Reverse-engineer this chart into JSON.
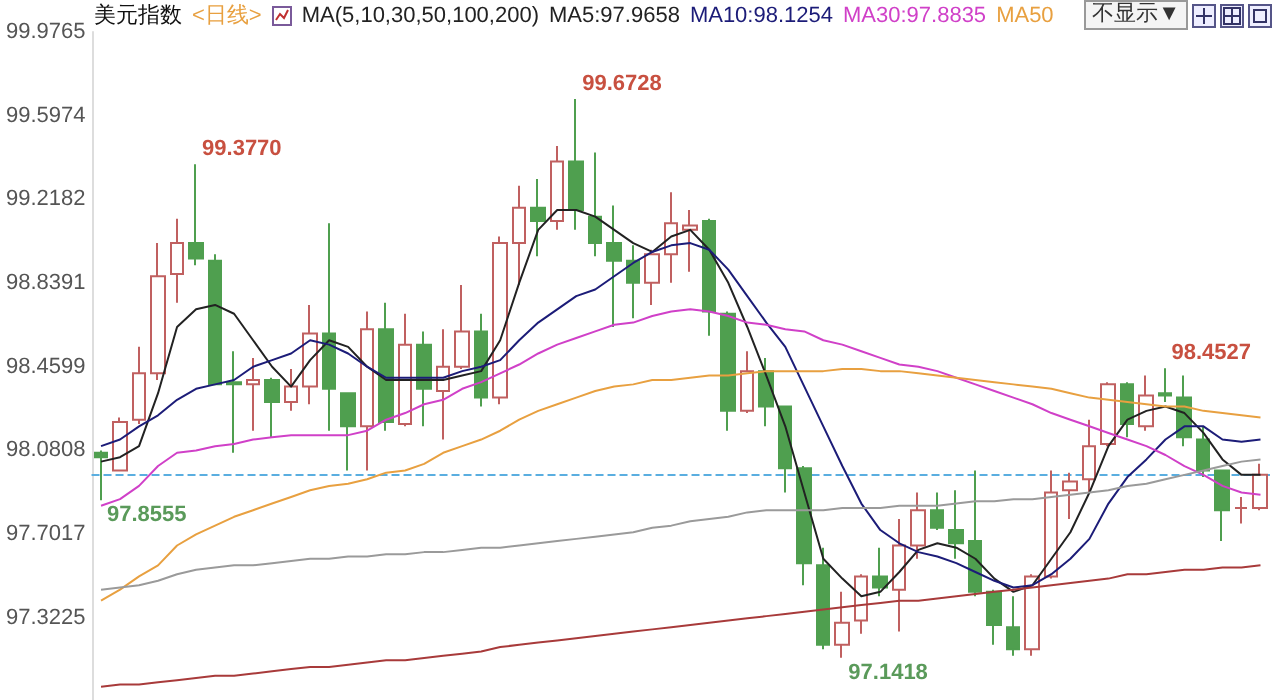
{
  "chart_data": {
    "type": "candlestick",
    "title": "美元指数",
    "subtitle": "<日线>",
    "annotations": [
      "MA(5,10,30,50,100,200)",
      "不显示▼",
      "99.3770",
      "99.6728",
      "98.4527",
      "97.8555",
      "97.1418"
    ],
    "categories": [
      null,
      null,
      null,
      null,
      null,
      null,
      null,
      null,
      null,
      null,
      null,
      null,
      null,
      null,
      null,
      null,
      null,
      null,
      null,
      null,
      null,
      null,
      null,
      null,
      null,
      null,
      null,
      null,
      null,
      null,
      null,
      null,
      null,
      null,
      null,
      null,
      null,
      null,
      null,
      null,
      null,
      null,
      null,
      null,
      null,
      null,
      null,
      null,
      null,
      null,
      null,
      null,
      null,
      null,
      null,
      null,
      null,
      null,
      null,
      null,
      null,
      null
    ],
    "ylim": [
      96.95,
      99.9765
    ],
    "yticks": [
      97.3225,
      97.7017,
      98.0808,
      98.4599,
      98.8391,
      99.2182,
      99.5974,
      99.9765
    ],
    "tick_labels": "y",
    "legend": "top",
    "ref_lines": [
      {
        "axis": "y",
        "value": 97.97,
        "color": "#5aaee0",
        "line_style": "dashed"
      }
    ],
    "series": [
      {
        "type": "candlestick",
        "ohlc": [
          [
            98.07,
            98.08,
            97.8555,
            98.05
          ],
          [
            97.99,
            98.23,
            97.99,
            98.21
          ],
          [
            98.22,
            98.55,
            98.2,
            98.43
          ],
          [
            98.43,
            99.02,
            98.4,
            98.87
          ],
          [
            98.88,
            99.13,
            98.75,
            99.02
          ],
          [
            99.02,
            99.377,
            98.92,
            98.95
          ],
          [
            98.94,
            98.97,
            98.38,
            98.38
          ],
          [
            98.39,
            98.53,
            98.07,
            98.38
          ],
          [
            98.38,
            98.5,
            98.17,
            98.4
          ],
          [
            98.4,
            98.41,
            98.14,
            98.3
          ],
          [
            98.3,
            98.45,
            98.26,
            98.37
          ],
          [
            98.37,
            98.74,
            98.29,
            98.61
          ],
          [
            98.61,
            99.11,
            98.17,
            98.36
          ],
          [
            98.34,
            98.34,
            97.99,
            98.19
          ],
          [
            98.19,
            98.71,
            97.99,
            98.63
          ],
          [
            98.63,
            98.75,
            98.17,
            98.21
          ],
          [
            98.2,
            98.7,
            98.19,
            98.56
          ],
          [
            98.56,
            98.62,
            98.19,
            98.36
          ],
          [
            98.35,
            98.63,
            98.13,
            98.46
          ],
          [
            98.46,
            98.83,
            98.45,
            98.62
          ],
          [
            98.62,
            98.7,
            98.28,
            98.32
          ],
          [
            98.32,
            99.05,
            98.29,
            99.02
          ],
          [
            99.02,
            99.28,
            98.83,
            99.18
          ],
          [
            99.18,
            99.31,
            98.96,
            99.12
          ],
          [
            99.12,
            99.46,
            99.08,
            99.39
          ],
          [
            99.39,
            99.6728,
            99.08,
            99.17
          ],
          [
            99.14,
            99.43,
            98.96,
            99.02
          ],
          [
            99.02,
            99.19,
            98.64,
            98.94
          ],
          [
            98.94,
            99.01,
            98.68,
            98.84
          ],
          [
            98.84,
            98.99,
            98.74,
            98.97
          ],
          [
            98.97,
            99.25,
            98.84,
            99.11
          ],
          [
            99.08,
            99.17,
            98.89,
            99.1
          ],
          [
            99.12,
            99.13,
            98.6,
            98.71
          ],
          [
            98.7,
            98.71,
            98.17,
            98.26
          ],
          [
            98.26,
            98.53,
            98.25,
            98.44
          ],
          [
            98.44,
            98.5,
            98.19,
            98.28
          ],
          [
            98.28,
            98.28,
            97.89,
            98.0
          ],
          [
            98.0,
            98.01,
            97.47,
            97.57
          ],
          [
            97.56,
            97.64,
            97.18,
            97.2
          ],
          [
            97.2,
            97.44,
            97.1418,
            97.3
          ],
          [
            97.31,
            97.52,
            97.25,
            97.51
          ],
          [
            97.51,
            97.64,
            97.42,
            97.46
          ],
          [
            97.45,
            97.77,
            97.26,
            97.65
          ],
          [
            97.65,
            97.89,
            97.59,
            97.81
          ],
          [
            97.81,
            97.89,
            97.72,
            97.73
          ],
          [
            97.72,
            97.9,
            97.59,
            97.66
          ],
          [
            97.67,
            97.99,
            97.42,
            97.44
          ],
          [
            97.44,
            97.45,
            97.2,
            97.29
          ],
          [
            97.28,
            97.42,
            97.15,
            97.18
          ],
          [
            97.18,
            97.52,
            97.15,
            97.51
          ],
          [
            97.51,
            97.99,
            97.5,
            97.89
          ],
          [
            97.9,
            97.98,
            97.77,
            97.94
          ],
          [
            97.95,
            98.22,
            97.89,
            98.1
          ],
          [
            98.11,
            98.39,
            98.1,
            98.38
          ],
          [
            98.38,
            98.39,
            98.14,
            98.2
          ],
          [
            98.19,
            98.42,
            98.17,
            98.33
          ],
          [
            98.34,
            98.4527,
            98.3,
            98.33
          ],
          [
            98.32,
            98.42,
            98.1,
            98.14
          ],
          [
            98.13,
            98.19,
            97.96,
            97.99
          ],
          [
            97.99,
            97.99,
            97.67,
            97.81
          ],
          [
            97.82,
            97.87,
            97.75,
            97.82
          ],
          [
            97.82,
            98.02,
            97.81,
            97.97
          ]
        ],
        "colors": [
          "#4f9f4f",
          "#c06060",
          "#c06060",
          "#c06060",
          "#c06060",
          "#4f9f4f",
          "#4f9f4f",
          "#4f9f4f",
          "#c06060",
          "#4f9f4f",
          "#c06060",
          "#c06060",
          "#4f9f4f",
          "#4f9f4f",
          "#c06060",
          "#4f9f4f",
          "#c06060",
          "#4f9f4f",
          "#c06060",
          "#c06060",
          "#4f9f4f",
          "#c06060",
          "#c06060",
          "#4f9f4f",
          "#c06060",
          "#4f9f4f",
          "#4f9f4f",
          "#4f9f4f",
          "#4f9f4f",
          "#c06060",
          "#c06060",
          "#c06060",
          "#4f9f4f",
          "#4f9f4f",
          "#c06060",
          "#4f9f4f",
          "#4f9f4f",
          "#4f9f4f",
          "#4f9f4f",
          "#c06060",
          "#c06060",
          "#4f9f4f",
          "#c06060",
          "#c06060",
          "#4f9f4f",
          "#4f9f4f",
          "#4f9f4f",
          "#4f9f4f",
          "#4f9f4f",
          "#c06060",
          "#c06060",
          "#c06060",
          "#c06060",
          "#c06060",
          "#4f9f4f",
          "#c06060",
          "#4f9f4f",
          "#4f9f4f",
          "#4f9f4f",
          "#4f9f4f",
          "#c06060",
          "#c06060"
        ]
      },
      {
        "type": "line",
        "name": "MA5:97.9658",
        "color": "#222222",
        "values": [
          98.03,
          98.05,
          98.1,
          98.34,
          98.64,
          98.72,
          98.74,
          98.7,
          98.58,
          98.46,
          98.37,
          98.49,
          98.58,
          98.55,
          98.46,
          98.4,
          98.4,
          98.4,
          98.4,
          98.42,
          98.44,
          98.58,
          98.84,
          99.08,
          99.17,
          99.17,
          99.14,
          99.08,
          99.02,
          98.98,
          99.05,
          99.08,
          98.99,
          98.84,
          98.64,
          98.42,
          98.19,
          97.89,
          97.59,
          97.5,
          97.42,
          97.44,
          97.53,
          97.63,
          97.66,
          97.64,
          97.59,
          97.5,
          97.44,
          97.47,
          97.59,
          97.71,
          97.89,
          98.1,
          98.22,
          98.26,
          98.28,
          98.25,
          98.16,
          98.04,
          97.97,
          97.97
        ]
      },
      {
        "type": "line",
        "name": "MA10:98.1254",
        "color": "#1c1c78",
        "values": [
          98.1,
          98.13,
          98.19,
          98.24,
          98.31,
          98.36,
          98.38,
          98.4,
          98.46,
          98.49,
          98.52,
          98.58,
          98.56,
          98.52,
          98.46,
          98.41,
          98.41,
          98.41,
          98.41,
          98.44,
          98.46,
          98.49,
          98.58,
          98.66,
          98.72,
          98.78,
          98.81,
          98.87,
          98.93,
          98.98,
          99.01,
          99.02,
          98.99,
          98.9,
          98.78,
          98.66,
          98.55,
          98.37,
          98.19,
          98.01,
          97.84,
          97.72,
          97.66,
          97.62,
          97.6,
          97.57,
          97.53,
          97.49,
          97.46,
          97.47,
          97.52,
          97.59,
          97.68,
          97.84,
          97.96,
          98.04,
          98.13,
          98.19,
          98.19,
          98.13,
          98.12,
          98.13
        ]
      },
      {
        "type": "line",
        "name": "MA30:97.8835",
        "color": "#d040c8",
        "values": [
          97.83,
          97.86,
          97.92,
          98.01,
          98.07,
          98.08,
          98.1,
          98.11,
          98.13,
          98.14,
          98.15,
          98.15,
          98.15,
          98.15,
          98.17,
          98.22,
          98.25,
          98.29,
          98.31,
          98.36,
          98.39,
          98.43,
          98.47,
          98.52,
          98.56,
          98.59,
          98.62,
          98.65,
          98.66,
          98.69,
          98.71,
          98.72,
          98.71,
          98.69,
          98.66,
          98.65,
          98.63,
          98.62,
          98.58,
          98.56,
          98.53,
          98.5,
          98.47,
          98.46,
          98.44,
          98.41,
          98.38,
          98.35,
          98.32,
          98.29,
          98.25,
          98.22,
          98.19,
          98.16,
          98.13,
          98.1,
          98.06,
          98.01,
          97.97,
          97.92,
          97.89,
          97.88
        ]
      },
      {
        "type": "line",
        "name": "MA50",
        "color": "#e8a040",
        "values": [
          97.4,
          97.45,
          97.51,
          97.56,
          97.65,
          97.7,
          97.74,
          97.78,
          97.81,
          97.84,
          97.87,
          97.9,
          97.92,
          97.93,
          97.95,
          97.98,
          97.99,
          98.02,
          98.07,
          98.1,
          98.13,
          98.17,
          98.22,
          98.26,
          98.29,
          98.32,
          98.35,
          98.37,
          98.38,
          98.4,
          98.4,
          98.41,
          98.42,
          98.42,
          98.43,
          98.44,
          98.44,
          98.44,
          98.44,
          98.45,
          98.45,
          98.44,
          98.44,
          98.43,
          98.42,
          98.41,
          98.4,
          98.39,
          98.38,
          98.37,
          98.36,
          98.34,
          98.32,
          98.31,
          98.3,
          98.29,
          98.28,
          98.28,
          98.26,
          98.25,
          98.24,
          98.23
        ]
      },
      {
        "type": "line",
        "color": "#9a9a9a",
        "values": [
          97.45,
          97.46,
          97.47,
          97.49,
          97.52,
          97.54,
          97.55,
          97.56,
          97.56,
          97.57,
          97.58,
          97.59,
          97.59,
          97.6,
          97.6,
          97.61,
          97.61,
          97.62,
          97.62,
          97.63,
          97.64,
          97.64,
          97.65,
          97.66,
          97.67,
          97.68,
          97.69,
          97.7,
          97.71,
          97.73,
          97.74,
          97.76,
          97.77,
          97.78,
          97.8,
          97.81,
          97.81,
          97.81,
          97.81,
          97.82,
          97.82,
          97.82,
          97.83,
          97.83,
          97.83,
          97.84,
          97.85,
          97.85,
          97.86,
          97.86,
          97.87,
          97.88,
          97.89,
          97.9,
          97.92,
          97.93,
          97.95,
          97.97,
          97.99,
          98.01,
          98.03,
          98.04
        ]
      },
      {
        "type": "line",
        "color": "#a83a3a",
        "values": [
          97.01,
          97.02,
          97.02,
          97.03,
          97.04,
          97.05,
          97.06,
          97.06,
          97.07,
          97.08,
          97.09,
          97.1,
          97.1,
          97.11,
          97.12,
          97.13,
          97.13,
          97.14,
          97.15,
          97.16,
          97.17,
          97.19,
          97.2,
          97.21,
          97.22,
          97.23,
          97.24,
          97.25,
          97.26,
          97.27,
          97.28,
          97.29,
          97.3,
          97.31,
          97.32,
          97.33,
          97.34,
          97.35,
          97.36,
          97.37,
          97.38,
          97.39,
          97.4,
          97.4,
          97.41,
          97.42,
          97.43,
          97.44,
          97.45,
          97.46,
          97.47,
          97.48,
          97.49,
          97.5,
          97.52,
          97.52,
          97.53,
          97.54,
          97.54,
          97.55,
          97.55,
          97.56
        ]
      }
    ]
  }
}
